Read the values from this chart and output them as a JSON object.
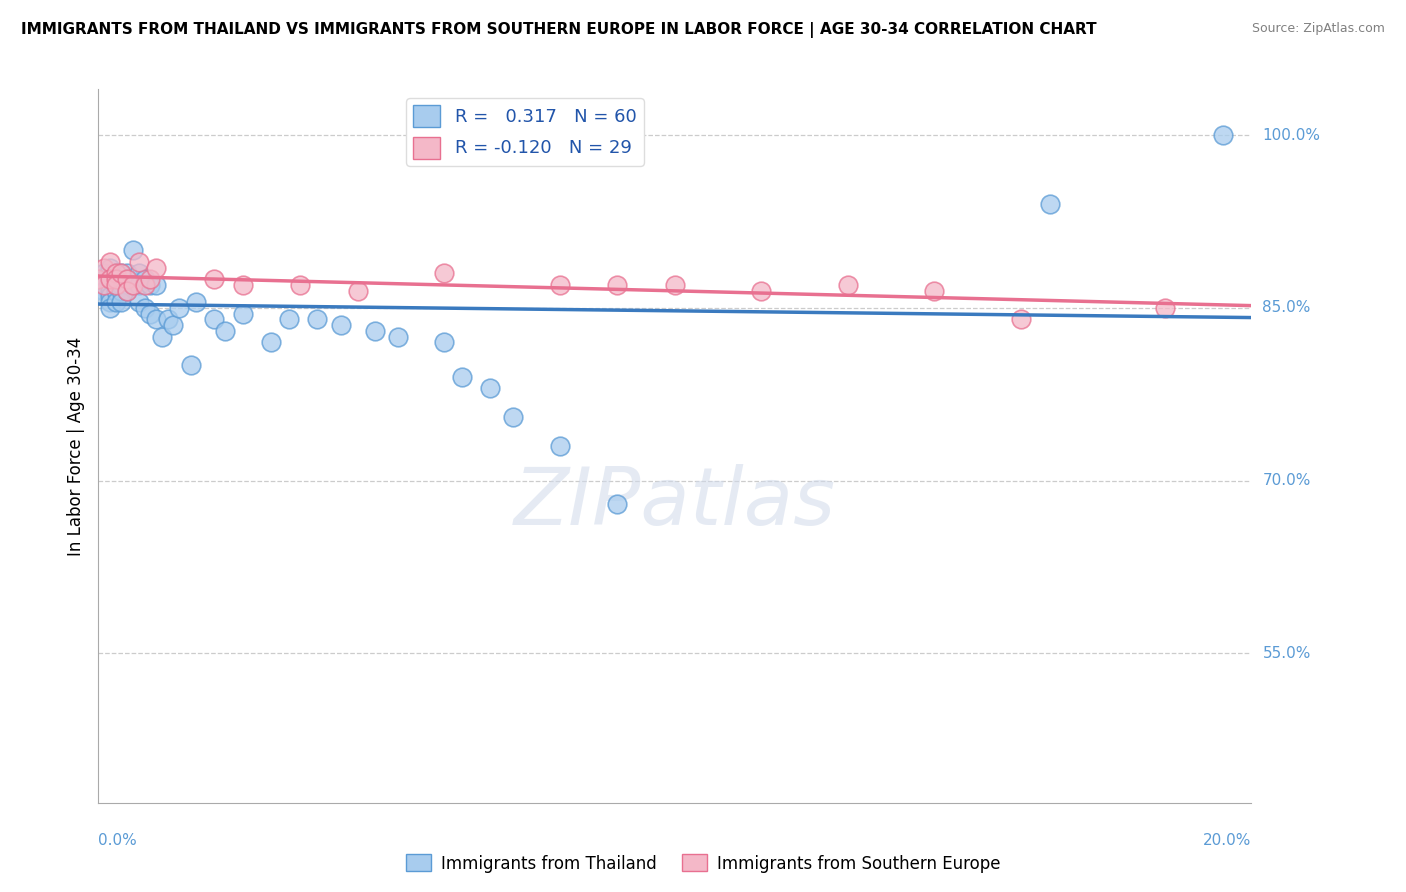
{
  "title": "IMMIGRANTS FROM THAILAND VS IMMIGRANTS FROM SOUTHERN EUROPE IN LABOR FORCE | AGE 30-34 CORRELATION CHART",
  "source": "Source: ZipAtlas.com",
  "ylabel": "In Labor Force | Age 30-34",
  "ytick_labels": [
    "55.0%",
    "70.0%",
    "85.0%",
    "100.0%"
  ],
  "ytick_values": [
    0.55,
    0.7,
    0.85,
    1.0
  ],
  "xlim": [
    0.0,
    0.2
  ],
  "ylim": [
    0.42,
    1.04
  ],
  "legend_text1": "R =   0.317   N = 60",
  "legend_text2": "R = -0.120   N = 29",
  "color_blue": "#a8ccee",
  "color_pink": "#f4b8c8",
  "color_blue_edge": "#5b9bd5",
  "color_pink_edge": "#e87090",
  "line_blue": "#3a7abf",
  "line_pink": "#e87090",
  "thailand_x": [
    0.0,
    0.0,
    0.001,
    0.001,
    0.001,
    0.001,
    0.001,
    0.002,
    0.002,
    0.002,
    0.002,
    0.002,
    0.002,
    0.002,
    0.003,
    0.003,
    0.003,
    0.003,
    0.003,
    0.004,
    0.004,
    0.004,
    0.004,
    0.005,
    0.005,
    0.005,
    0.006,
    0.006,
    0.007,
    0.007,
    0.007,
    0.008,
    0.008,
    0.009,
    0.009,
    0.01,
    0.01,
    0.011,
    0.012,
    0.013,
    0.014,
    0.016,
    0.017,
    0.02,
    0.022,
    0.025,
    0.03,
    0.033,
    0.038,
    0.042,
    0.048,
    0.052,
    0.06,
    0.063,
    0.068,
    0.072,
    0.08,
    0.09,
    0.165,
    0.195
  ],
  "thailand_y": [
    0.875,
    0.87,
    0.88,
    0.875,
    0.87,
    0.865,
    0.86,
    0.885,
    0.875,
    0.87,
    0.865,
    0.86,
    0.855,
    0.85,
    0.88,
    0.875,
    0.87,
    0.865,
    0.855,
    0.88,
    0.87,
    0.865,
    0.855,
    0.88,
    0.875,
    0.865,
    0.9,
    0.87,
    0.88,
    0.87,
    0.855,
    0.875,
    0.85,
    0.87,
    0.845,
    0.87,
    0.84,
    0.825,
    0.84,
    0.835,
    0.85,
    0.8,
    0.855,
    0.84,
    0.83,
    0.845,
    0.82,
    0.84,
    0.84,
    0.835,
    0.83,
    0.825,
    0.82,
    0.79,
    0.78,
    0.755,
    0.73,
    0.68,
    0.94,
    1.0
  ],
  "southern_europe_x": [
    0.0,
    0.001,
    0.001,
    0.002,
    0.002,
    0.003,
    0.003,
    0.003,
    0.004,
    0.005,
    0.005,
    0.006,
    0.007,
    0.008,
    0.009,
    0.01,
    0.02,
    0.025,
    0.035,
    0.045,
    0.06,
    0.08,
    0.09,
    0.1,
    0.115,
    0.13,
    0.145,
    0.16,
    0.185
  ],
  "southern_europe_y": [
    0.875,
    0.885,
    0.87,
    0.89,
    0.875,
    0.88,
    0.875,
    0.87,
    0.88,
    0.875,
    0.865,
    0.87,
    0.89,
    0.87,
    0.875,
    0.885,
    0.875,
    0.87,
    0.87,
    0.865,
    0.88,
    0.87,
    0.87,
    0.87,
    0.865,
    0.87,
    0.865,
    0.84,
    0.85
  ]
}
